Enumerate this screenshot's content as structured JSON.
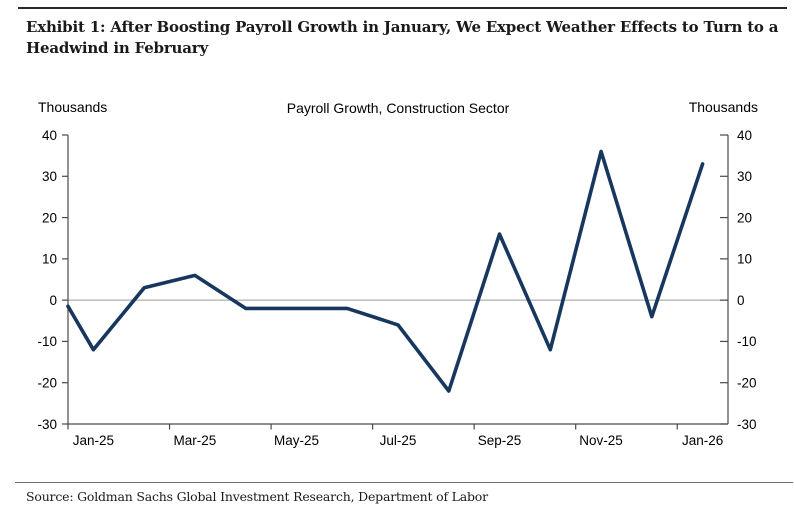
{
  "header": {
    "title_lines": [
      "Exhibit 1: After Boosting Payroll Growth in January, We Expect Weather Effects to Turn to a",
      "Headwind in February"
    ]
  },
  "footer": {
    "source": "Source: Goldman Sachs Global Investment Research, Department of Labor"
  },
  "chart_data": {
    "type": "line",
    "title": "Payroll Growth, Construction Sector",
    "left_axis_title": "Thousands",
    "right_axis_title": "Thousands",
    "categories": [
      "Jan-25",
      "Feb-25",
      "Mar-25",
      "Apr-25",
      "May-25",
      "Jun-25",
      "Jul-25",
      "Aug-25",
      "Sep-25",
      "Oct-25",
      "Nov-25",
      "Dec-25",
      "Jan-26"
    ],
    "values": [
      -12,
      3,
      6,
      -2,
      -2,
      -2,
      -6,
      -22,
      16,
      -12,
      36,
      -4,
      33
    ],
    "left_edge_entry_value": -1.5,
    "x_tick_labels": [
      "Jan-25",
      "Mar-25",
      "May-25",
      "Jul-25",
      "Sep-25",
      "Nov-25",
      "Jan-26"
    ],
    "x_label_every": 2,
    "y_ticks": [
      40,
      30,
      20,
      10,
      0,
      -10,
      -20,
      -30
    ],
    "ylim": [
      -30,
      40
    ],
    "grid": false,
    "legend": "none",
    "zero_line": true,
    "colors": {
      "line": "#17375E",
      "axis": "#4a4a4a",
      "zero_line": "#9a9a9a"
    }
  }
}
